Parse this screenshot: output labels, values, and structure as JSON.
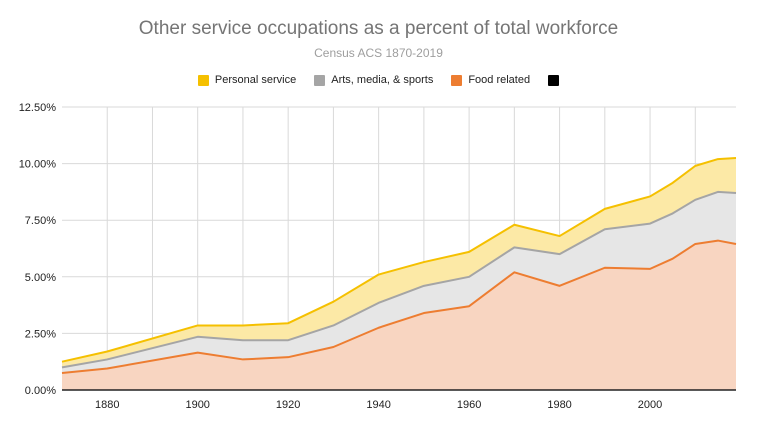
{
  "chart_data": {
    "type": "area",
    "stacked": true,
    "title": "Other service occupations as a percent of total workforce",
    "subtitle": "Census ACS 1870-2019",
    "xlim": [
      1870,
      2019
    ],
    "ylim": [
      0,
      12.5
    ],
    "x_ticks": [
      1880,
      1900,
      1920,
      1940,
      1960,
      1980,
      2000
    ],
    "y_ticks": [
      0,
      2.5,
      5,
      7.5,
      10,
      12.5
    ],
    "y_tick_labels": [
      "0.00%",
      "2.50%",
      "5.00%",
      "7.50%",
      "10.00%",
      "12.50%"
    ],
    "x": [
      1870,
      1880,
      1900,
      1910,
      1920,
      1930,
      1940,
      1950,
      1960,
      1970,
      1980,
      1990,
      2000,
      2005,
      2010,
      2015,
      2019
    ],
    "legend_position": "top",
    "series": [
      {
        "name": "Food related",
        "color": "#ed7d31",
        "fill": "#f8d5c1",
        "values": [
          0.75,
          0.95,
          1.65,
          1.35,
          1.45,
          1.9,
          2.75,
          3.4,
          3.7,
          5.2,
          4.6,
          5.4,
          5.35,
          5.8,
          6.45,
          6.6,
          6.45
        ]
      },
      {
        "name": "Arts, media, & sports",
        "color": "#a5a5a5",
        "fill": "#e6e6e6",
        "values": [
          0.25,
          0.4,
          0.7,
          0.85,
          0.75,
          0.95,
          1.1,
          1.2,
          1.3,
          1.1,
          1.4,
          1.7,
          2.0,
          2.0,
          1.95,
          2.15,
          2.25
        ]
      },
      {
        "name": "Personal service",
        "color": "#f5c000",
        "fill": "#fce9a6",
        "values": [
          0.25,
          0.35,
          0.5,
          0.65,
          0.75,
          1.05,
          1.25,
          1.05,
          1.1,
          1.0,
          0.8,
          0.9,
          1.2,
          1.35,
          1.5,
          1.45,
          1.55
        ]
      }
    ],
    "legend": [
      {
        "label": "Personal service",
        "color": "#f5c000"
      },
      {
        "label": "Arts, media, & sports",
        "color": "#a5a5a5"
      },
      {
        "label": "Food related",
        "color": "#ed7d31"
      },
      {
        "label": "",
        "color": "#000000"
      }
    ]
  }
}
